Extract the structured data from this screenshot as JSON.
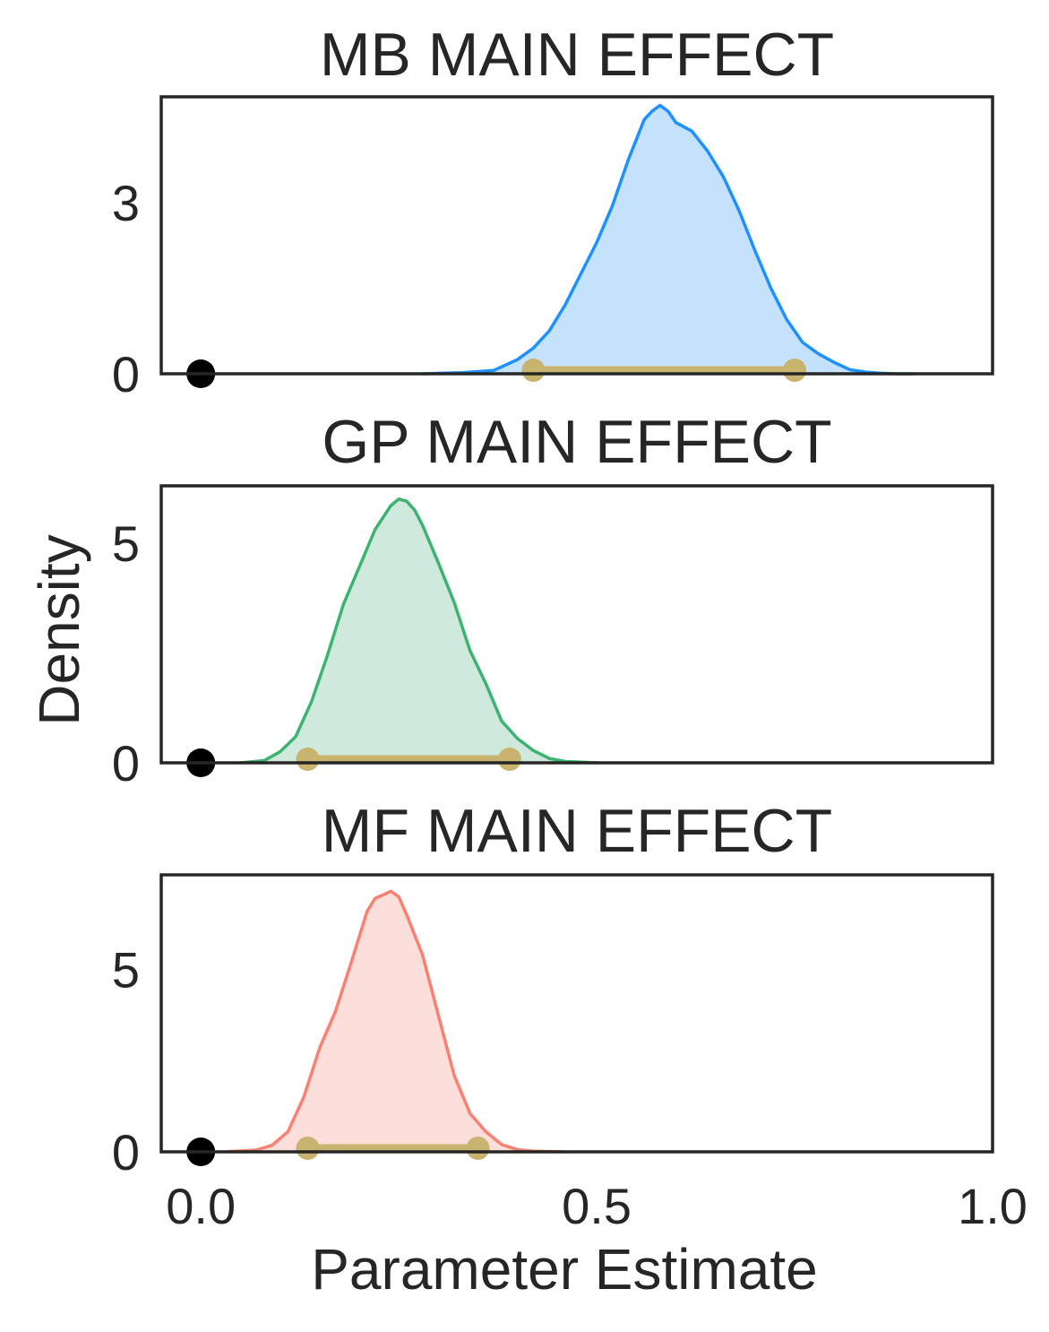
{
  "chart_data": [
    {
      "type": "area",
      "title": "MB MAIN EFFECT",
      "color": "#1e90ff",
      "fill": "#c4e2fc",
      "xlim": [
        -0.05,
        1.0
      ],
      "ylim": [
        0,
        4.85
      ],
      "yticks": [
        {
          "v": 0,
          "label": "0"
        },
        {
          "v": 3,
          "label": "3"
        }
      ],
      "x": [
        0.28,
        0.33,
        0.37,
        0.4,
        0.42,
        0.44,
        0.46,
        0.48,
        0.5,
        0.52,
        0.54,
        0.56,
        0.57,
        0.58,
        0.59,
        0.6,
        0.62,
        0.64,
        0.66,
        0.68,
        0.7,
        0.72,
        0.74,
        0.76,
        0.78,
        0.8,
        0.82,
        0.84,
        0.86,
        0.88,
        0.9
      ],
      "y": [
        0.0,
        0.02,
        0.06,
        0.25,
        0.45,
        0.75,
        1.2,
        1.75,
        2.3,
        2.95,
        3.75,
        4.45,
        4.6,
        4.7,
        4.6,
        4.4,
        4.25,
        3.9,
        3.45,
        2.85,
        2.15,
        1.5,
        0.95,
        0.55,
        0.35,
        0.2,
        0.07,
        0.03,
        0.01,
        0.0,
        0.0
      ],
      "zero_marker": 0.0,
      "interval": [
        0.42,
        0.75
      ]
    },
    {
      "type": "area",
      "title": "GP MAIN EFFECT",
      "color": "#3cb371",
      "fill": "#cfeadc",
      "xlim": [
        -0.05,
        1.0
      ],
      "ylim": [
        0,
        6.3
      ],
      "yticks": [
        {
          "v": 0,
          "label": "0"
        },
        {
          "v": 5,
          "label": "5"
        }
      ],
      "x": [
        0.05,
        0.08,
        0.1,
        0.12,
        0.14,
        0.16,
        0.18,
        0.2,
        0.22,
        0.24,
        0.25,
        0.26,
        0.27,
        0.28,
        0.3,
        0.32,
        0.34,
        0.36,
        0.38,
        0.4,
        0.42,
        0.44,
        0.46,
        0.5
      ],
      "y": [
        0.0,
        0.05,
        0.25,
        0.6,
        1.4,
        2.45,
        3.6,
        4.45,
        5.3,
        5.85,
        6.0,
        5.95,
        5.75,
        5.4,
        4.55,
        3.65,
        2.55,
        1.8,
        0.95,
        0.55,
        0.28,
        0.1,
        0.03,
        0.0
      ],
      "zero_marker": 0.0,
      "interval": [
        0.135,
        0.39
      ]
    },
    {
      "type": "area",
      "title": "MF MAIN EFFECT",
      "color": "#fa8072",
      "fill": "#fcdeda",
      "xlim": [
        -0.05,
        1.0
      ],
      "ylim": [
        0,
        7.6
      ],
      "yticks": [
        {
          "v": 0,
          "label": "0"
        },
        {
          "v": 5,
          "label": "5"
        }
      ],
      "x": [
        0.03,
        0.07,
        0.09,
        0.11,
        0.13,
        0.15,
        0.17,
        0.19,
        0.21,
        0.22,
        0.23,
        0.24,
        0.25,
        0.26,
        0.28,
        0.3,
        0.32,
        0.34,
        0.36,
        0.38,
        0.4,
        0.42,
        0.46
      ],
      "y": [
        0.0,
        0.05,
        0.18,
        0.55,
        1.5,
        2.85,
        3.85,
        5.2,
        6.6,
        6.95,
        7.05,
        7.15,
        7.0,
        6.5,
        5.4,
        3.75,
        2.1,
        1.05,
        0.55,
        0.2,
        0.06,
        0.02,
        0.0
      ],
      "zero_marker": 0.0,
      "interval": [
        0.135,
        0.35
      ]
    }
  ],
  "xticks": [
    {
      "v": 0.0,
      "label": "0.0"
    },
    {
      "v": 0.5,
      "label": "0.5"
    },
    {
      "v": 1.0,
      "label": "1.0"
    }
  ],
  "xlabel": "Parameter Estimate",
  "ylabel": "Density",
  "interval_color": "#c8b46e",
  "zero_marker_color": "#000000"
}
